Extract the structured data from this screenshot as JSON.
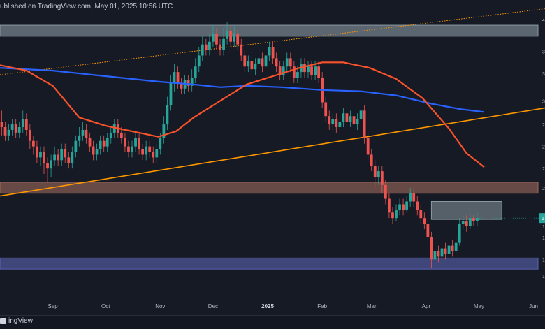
{
  "header": {
    "published": "ublished on TradingView.com, May 01, 2025 10:56 UTC"
  },
  "footer": {
    "brand": "ingView"
  },
  "colors": {
    "background": "#161a25",
    "bull": "#26a69a",
    "bear": "#ef5350",
    "ma_orange": "#f7522b",
    "ma_blue": "#2962ff",
    "trendline": "#ff9800",
    "supply_zone": "#8a9aa3",
    "support_brown": "#9e6b5c",
    "support_blue": "#5a64b4"
  },
  "chart_data": {
    "type": "candlestick",
    "x_ticks": [
      {
        "label": "Sep",
        "day": 30
      },
      {
        "label": "Oct",
        "day": 60
      },
      {
        "label": "Nov",
        "day": 91
      },
      {
        "label": "Dec",
        "day": 121
      },
      {
        "label": "2025",
        "day": 152,
        "bold": true
      },
      {
        "label": "Feb",
        "day": 183
      },
      {
        "label": "Mar",
        "day": 211
      },
      {
        "label": "Apr",
        "day": 242
      },
      {
        "label": "May",
        "day": 272
      },
      {
        "label": "Jun",
        "day": 303
      }
    ],
    "price_ticks": [
      {
        "label": "4",
        "price": 0.93
      },
      {
        "label": "3",
        "price": 0.815
      },
      {
        "label": "3",
        "price": 0.735
      },
      {
        "label": "3",
        "price": 0.635
      },
      {
        "label": "2",
        "price": 0.55
      },
      {
        "label": "2",
        "price": 0.47
      },
      {
        "label": "2",
        "price": 0.39
      },
      {
        "label": "2",
        "price": 0.32
      },
      {
        "label": "1",
        "price": 0.18
      },
      {
        "label": "1",
        "price": 0.14
      },
      {
        "label": "1",
        "price": 0.06
      },
      {
        "label": "1",
        "price": 0.0
      }
    ],
    "current_price_label": "1",
    "zones": [
      {
        "name": "top-resistance",
        "y1": 0.91,
        "y2": 0.87,
        "x1": 0,
        "x2": 310,
        "color": "#8a9aa3"
      },
      {
        "name": "mid-support",
        "y1": 0.34,
        "y2": 0.3,
        "x1": 0,
        "x2": 310,
        "color": "#9e6b5c"
      },
      {
        "name": "low-support",
        "y1": 0.065,
        "y2": 0.025,
        "x1": 0,
        "x2": 310,
        "color": "#5a64b4"
      },
      {
        "name": "supply-box",
        "y1": 0.27,
        "y2": 0.205,
        "x1": 245,
        "x2": 285,
        "color": "#8a9aa3"
      }
    ],
    "lines": [
      {
        "name": "upper-dotted-trendline",
        "style": "dotted",
        "points": [
          [
            0,
            0.73
          ],
          [
            310,
            0.97
          ]
        ]
      },
      {
        "name": "rising-trendline",
        "style": "solid",
        "points": [
          [
            0,
            0.29
          ],
          [
            310,
            0.61
          ]
        ]
      }
    ],
    "ma_200": [
      [
        0,
        0.755
      ],
      [
        30,
        0.745
      ],
      [
        60,
        0.725
      ],
      [
        90,
        0.705
      ],
      [
        110,
        0.695
      ],
      [
        125,
        0.685
      ],
      [
        140,
        0.69
      ],
      [
        160,
        0.685
      ],
      [
        183,
        0.675
      ],
      [
        205,
        0.67
      ],
      [
        225,
        0.655
      ],
      [
        245,
        0.625
      ],
      [
        262,
        0.605
      ],
      [
        275,
        0.595
      ]
    ],
    "ma_100": [
      [
        0,
        0.765
      ],
      [
        15,
        0.745
      ],
      [
        30,
        0.69
      ],
      [
        45,
        0.575
      ],
      [
        60,
        0.545
      ],
      [
        75,
        0.525
      ],
      [
        90,
        0.505
      ],
      [
        100,
        0.525
      ],
      [
        110,
        0.575
      ],
      [
        125,
        0.635
      ],
      [
        140,
        0.695
      ],
      [
        155,
        0.725
      ],
      [
        170,
        0.755
      ],
      [
        183,
        0.775
      ],
      [
        195,
        0.775
      ],
      [
        210,
        0.755
      ],
      [
        225,
        0.715
      ],
      [
        240,
        0.645
      ],
      [
        255,
        0.535
      ],
      [
        265,
        0.445
      ],
      [
        275,
        0.395
      ]
    ],
    "candles": [
      [
        1,
        0.56,
        0.54,
        0.6,
        0.51
      ],
      [
        3,
        0.54,
        0.51,
        0.56,
        0.49
      ],
      [
        5,
        0.51,
        0.53,
        0.55,
        0.49
      ],
      [
        7,
        0.53,
        0.55,
        0.57,
        0.51
      ],
      [
        9,
        0.55,
        0.52,
        0.57,
        0.5
      ],
      [
        11,
        0.52,
        0.54,
        0.56,
        0.5
      ],
      [
        13,
        0.54,
        0.57,
        0.6,
        0.52
      ],
      [
        15,
        0.57,
        0.53,
        0.59,
        0.51
      ],
      [
        17,
        0.53,
        0.49,
        0.55,
        0.46
      ],
      [
        19,
        0.49,
        0.47,
        0.51,
        0.44
      ],
      [
        21,
        0.47,
        0.43,
        0.49,
        0.41
      ],
      [
        23,
        0.43,
        0.45,
        0.47,
        0.4
      ],
      [
        25,
        0.45,
        0.41,
        0.47,
        0.37
      ],
      [
        27,
        0.41,
        0.39,
        0.43,
        0.34
      ],
      [
        29,
        0.39,
        0.42,
        0.44,
        0.36
      ],
      [
        31,
        0.42,
        0.44,
        0.47,
        0.4
      ],
      [
        33,
        0.44,
        0.42,
        0.46,
        0.4
      ],
      [
        35,
        0.42,
        0.46,
        0.48,
        0.4
      ],
      [
        37,
        0.46,
        0.43,
        0.48,
        0.41
      ],
      [
        39,
        0.43,
        0.41,
        0.45,
        0.39
      ],
      [
        41,
        0.41,
        0.45,
        0.47,
        0.39
      ],
      [
        43,
        0.45,
        0.49,
        0.51,
        0.43
      ],
      [
        45,
        0.49,
        0.51,
        0.54,
        0.47
      ],
      [
        47,
        0.51,
        0.53,
        0.56,
        0.49
      ],
      [
        49,
        0.53,
        0.5,
        0.55,
        0.48
      ],
      [
        51,
        0.5,
        0.47,
        0.52,
        0.45
      ],
      [
        53,
        0.47,
        0.44,
        0.49,
        0.42
      ],
      [
        55,
        0.44,
        0.46,
        0.48,
        0.42
      ],
      [
        57,
        0.46,
        0.49,
        0.51,
        0.44
      ],
      [
        59,
        0.49,
        0.47,
        0.51,
        0.45
      ],
      [
        61,
        0.47,
        0.5,
        0.52,
        0.45
      ],
      [
        63,
        0.5,
        0.52,
        0.54,
        0.48
      ],
      [
        65,
        0.52,
        0.55,
        0.57,
        0.5
      ],
      [
        67,
        0.55,
        0.52,
        0.57,
        0.5
      ],
      [
        69,
        0.52,
        0.5,
        0.54,
        0.48
      ],
      [
        71,
        0.5,
        0.47,
        0.52,
        0.45
      ],
      [
        73,
        0.47,
        0.45,
        0.49,
        0.43
      ],
      [
        75,
        0.45,
        0.47,
        0.49,
        0.43
      ],
      [
        77,
        0.47,
        0.5,
        0.52,
        0.45
      ],
      [
        79,
        0.5,
        0.46,
        0.52,
        0.44
      ],
      [
        81,
        0.46,
        0.44,
        0.48,
        0.42
      ],
      [
        83,
        0.44,
        0.47,
        0.49,
        0.42
      ],
      [
        85,
        0.47,
        0.45,
        0.49,
        0.43
      ],
      [
        87,
        0.45,
        0.43,
        0.47,
        0.41
      ],
      [
        89,
        0.43,
        0.46,
        0.48,
        0.41
      ],
      [
        91,
        0.46,
        0.5,
        0.52,
        0.44
      ],
      [
        93,
        0.5,
        0.55,
        0.58,
        0.48
      ],
      [
        95,
        0.55,
        0.62,
        0.65,
        0.53
      ],
      [
        97,
        0.62,
        0.7,
        0.73,
        0.6
      ],
      [
        99,
        0.7,
        0.74,
        0.77,
        0.67
      ],
      [
        101,
        0.74,
        0.7,
        0.76,
        0.68
      ],
      [
        103,
        0.7,
        0.68,
        0.72,
        0.66
      ],
      [
        105,
        0.68,
        0.71,
        0.73,
        0.66
      ],
      [
        107,
        0.71,
        0.69,
        0.73,
        0.67
      ],
      [
        109,
        0.69,
        0.72,
        0.75,
        0.67
      ],
      [
        111,
        0.72,
        0.76,
        0.79,
        0.7
      ],
      [
        113,
        0.76,
        0.8,
        0.83,
        0.74
      ],
      [
        115,
        0.8,
        0.84,
        0.87,
        0.78
      ],
      [
        117,
        0.84,
        0.82,
        0.86,
        0.8
      ],
      [
        119,
        0.82,
        0.85,
        0.88,
        0.8
      ],
      [
        121,
        0.85,
        0.88,
        0.91,
        0.83
      ],
      [
        123,
        0.88,
        0.84,
        0.9,
        0.82
      ],
      [
        125,
        0.84,
        0.82,
        0.86,
        0.8
      ],
      [
        127,
        0.82,
        0.86,
        0.9,
        0.8
      ],
      [
        129,
        0.86,
        0.89,
        0.92,
        0.84
      ],
      [
        131,
        0.89,
        0.85,
        0.91,
        0.83
      ],
      [
        133,
        0.85,
        0.88,
        0.91,
        0.83
      ],
      [
        135,
        0.88,
        0.84,
        0.9,
        0.82
      ],
      [
        137,
        0.84,
        0.8,
        0.86,
        0.78
      ],
      [
        139,
        0.8,
        0.76,
        0.82,
        0.74
      ],
      [
        141,
        0.76,
        0.78,
        0.8,
        0.74
      ],
      [
        143,
        0.78,
        0.75,
        0.8,
        0.73
      ],
      [
        145,
        0.75,
        0.77,
        0.79,
        0.73
      ],
      [
        147,
        0.77,
        0.79,
        0.81,
        0.75
      ],
      [
        149,
        0.79,
        0.76,
        0.81,
        0.74
      ],
      [
        151,
        0.76,
        0.8,
        0.82,
        0.74
      ],
      [
        153,
        0.8,
        0.83,
        0.85,
        0.78
      ],
      [
        155,
        0.83,
        0.79,
        0.85,
        0.77
      ],
      [
        157,
        0.79,
        0.76,
        0.81,
        0.74
      ],
      [
        159,
        0.76,
        0.73,
        0.78,
        0.71
      ],
      [
        161,
        0.73,
        0.76,
        0.78,
        0.71
      ],
      [
        163,
        0.76,
        0.79,
        0.81,
        0.74
      ],
      [
        165,
        0.79,
        0.76,
        0.81,
        0.74
      ],
      [
        167,
        0.76,
        0.72,
        0.78,
        0.7
      ],
      [
        169,
        0.72,
        0.74,
        0.76,
        0.7
      ],
      [
        171,
        0.74,
        0.77,
        0.79,
        0.72
      ],
      [
        173,
        0.77,
        0.74,
        0.79,
        0.72
      ],
      [
        175,
        0.74,
        0.76,
        0.78,
        0.72
      ],
      [
        177,
        0.76,
        0.73,
        0.78,
        0.71
      ],
      [
        179,
        0.73,
        0.76,
        0.78,
        0.71
      ],
      [
        181,
        0.76,
        0.72,
        0.78,
        0.7
      ],
      [
        183,
        0.72,
        0.63,
        0.74,
        0.61
      ],
      [
        185,
        0.63,
        0.58,
        0.65,
        0.56
      ],
      [
        187,
        0.58,
        0.55,
        0.6,
        0.53
      ],
      [
        189,
        0.55,
        0.57,
        0.59,
        0.53
      ],
      [
        191,
        0.57,
        0.54,
        0.59,
        0.52
      ],
      [
        193,
        0.54,
        0.56,
        0.58,
        0.52
      ],
      [
        195,
        0.56,
        0.59,
        0.61,
        0.54
      ],
      [
        197,
        0.59,
        0.56,
        0.61,
        0.54
      ],
      [
        199,
        0.56,
        0.58,
        0.6,
        0.54
      ],
      [
        201,
        0.58,
        0.55,
        0.6,
        0.53
      ],
      [
        203,
        0.55,
        0.57,
        0.59,
        0.53
      ],
      [
        205,
        0.57,
        0.6,
        0.62,
        0.55
      ],
      [
        207,
        0.6,
        0.5,
        0.62,
        0.48
      ],
      [
        209,
        0.5,
        0.44,
        0.52,
        0.42
      ],
      [
        211,
        0.44,
        0.4,
        0.46,
        0.38
      ],
      [
        213,
        0.4,
        0.36,
        0.42,
        0.32
      ],
      [
        215,
        0.36,
        0.38,
        0.4,
        0.33
      ],
      [
        217,
        0.38,
        0.33,
        0.4,
        0.3
      ],
      [
        219,
        0.33,
        0.28,
        0.35,
        0.26
      ],
      [
        221,
        0.28,
        0.23,
        0.3,
        0.21
      ],
      [
        223,
        0.23,
        0.21,
        0.25,
        0.19
      ],
      [
        225,
        0.21,
        0.24,
        0.26,
        0.2
      ],
      [
        227,
        0.24,
        0.26,
        0.28,
        0.22
      ],
      [
        229,
        0.26,
        0.24,
        0.28,
        0.22
      ],
      [
        231,
        0.24,
        0.27,
        0.29,
        0.23
      ],
      [
        233,
        0.27,
        0.3,
        0.32,
        0.25
      ],
      [
        235,
        0.3,
        0.27,
        0.32,
        0.25
      ],
      [
        237,
        0.27,
        0.24,
        0.29,
        0.22
      ],
      [
        239,
        0.24,
        0.21,
        0.26,
        0.19
      ],
      [
        241,
        0.21,
        0.19,
        0.23,
        0.17
      ],
      [
        243,
        0.19,
        0.14,
        0.21,
        0.12
      ],
      [
        245,
        0.14,
        0.06,
        0.16,
        0.03
      ],
      [
        247,
        0.06,
        0.09,
        0.12,
        0.02
      ],
      [
        249,
        0.09,
        0.07,
        0.11,
        0.05
      ],
      [
        251,
        0.07,
        0.1,
        0.12,
        0.06
      ],
      [
        253,
        0.1,
        0.08,
        0.12,
        0.06
      ],
      [
        255,
        0.08,
        0.11,
        0.13,
        0.07
      ],
      [
        257,
        0.11,
        0.09,
        0.13,
        0.07
      ],
      [
        259,
        0.09,
        0.12,
        0.14,
        0.08
      ],
      [
        261,
        0.12,
        0.19,
        0.21,
        0.11
      ],
      [
        263,
        0.19,
        0.2,
        0.22,
        0.17
      ],
      [
        265,
        0.2,
        0.18,
        0.22,
        0.16
      ],
      [
        267,
        0.18,
        0.21,
        0.23,
        0.17
      ],
      [
        269,
        0.21,
        0.2,
        0.22,
        0.18
      ],
      [
        271,
        0.2,
        0.21,
        0.23,
        0.18
      ]
    ]
  }
}
